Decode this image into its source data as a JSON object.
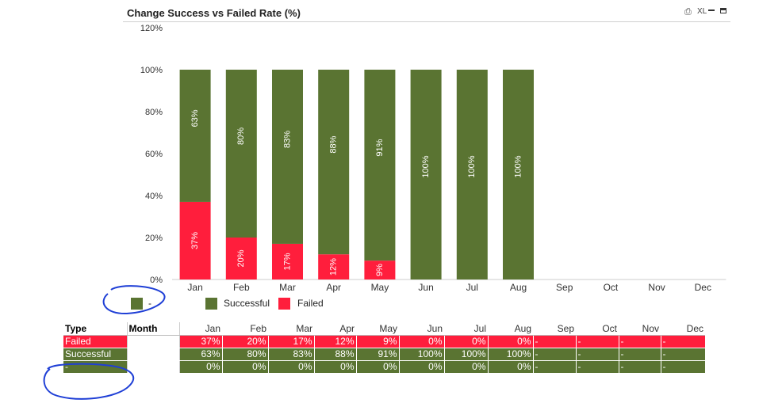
{
  "header": {
    "title": "Change  Success vs Failed Rate (%)",
    "print_icon": "print-icon",
    "xl_label": "XL",
    "minimize_icon": "minimize-icon",
    "maximize_icon": "maximize-icon"
  },
  "colors": {
    "successful": "#5a7432",
    "failed": "#ff1e3c",
    "annotation": "#1f3fd6"
  },
  "chart_data": {
    "type": "bar",
    "stacked": true,
    "title": "Change  Success vs Failed Rate (%)",
    "categories": [
      "Jan",
      "Feb",
      "Mar",
      "Apr",
      "May",
      "Jun",
      "Jul",
      "Aug",
      "Sep",
      "Oct",
      "Nov",
      "Dec"
    ],
    "series": [
      {
        "name": "Failed",
        "values": [
          37,
          20,
          17,
          12,
          9,
          0,
          0,
          0,
          null,
          null,
          null,
          null
        ],
        "labels": [
          "37%",
          "20%",
          "17%",
          "12%",
          "9%",
          "",
          "",
          "",
          "",
          "",
          "",
          ""
        ]
      },
      {
        "name": "Successful",
        "values": [
          63,
          80,
          83,
          88,
          91,
          100,
          100,
          100,
          null,
          null,
          null,
          null
        ],
        "labels": [
          "63%",
          "80%",
          "83%",
          "88%",
          "91%",
          "100%",
          "100%",
          "100%",
          "",
          "",
          "",
          ""
        ]
      }
    ],
    "yticks": [
      "0%",
      "20%",
      "40%",
      "60%",
      "80%",
      "100%",
      "120%"
    ],
    "ylim": [
      0,
      120
    ],
    "xlabel": "",
    "ylabel": ""
  },
  "legend": [
    {
      "label": "-",
      "color": "#5a7432"
    },
    {
      "label": "Successful",
      "color": "#5a7432"
    },
    {
      "label": "Failed",
      "color": "#ff1e3c"
    }
  ],
  "table": {
    "type_header": "Type",
    "month_header": "Month",
    "months": [
      "Jan",
      "Feb",
      "Mar",
      "Apr",
      "May",
      "Jun",
      "Jul",
      "Aug",
      "Sep",
      "Oct",
      "Nov",
      "Dec"
    ],
    "rows": [
      {
        "type": "Failed",
        "values": [
          "37%",
          "20%",
          "17%",
          "12%",
          "9%",
          "0%",
          "0%",
          "0%",
          "-",
          "-",
          "-",
          "-"
        ]
      },
      {
        "type": "Successful",
        "values": [
          "63%",
          "80%",
          "83%",
          "88%",
          "91%",
          "100%",
          "100%",
          "100%",
          "-",
          "-",
          "-",
          "-"
        ]
      },
      {
        "type": "-",
        "values": [
          "0%",
          "0%",
          "0%",
          "0%",
          "0%",
          "0%",
          "0%",
          "0%",
          "-",
          "-",
          "-",
          "-"
        ]
      }
    ]
  }
}
